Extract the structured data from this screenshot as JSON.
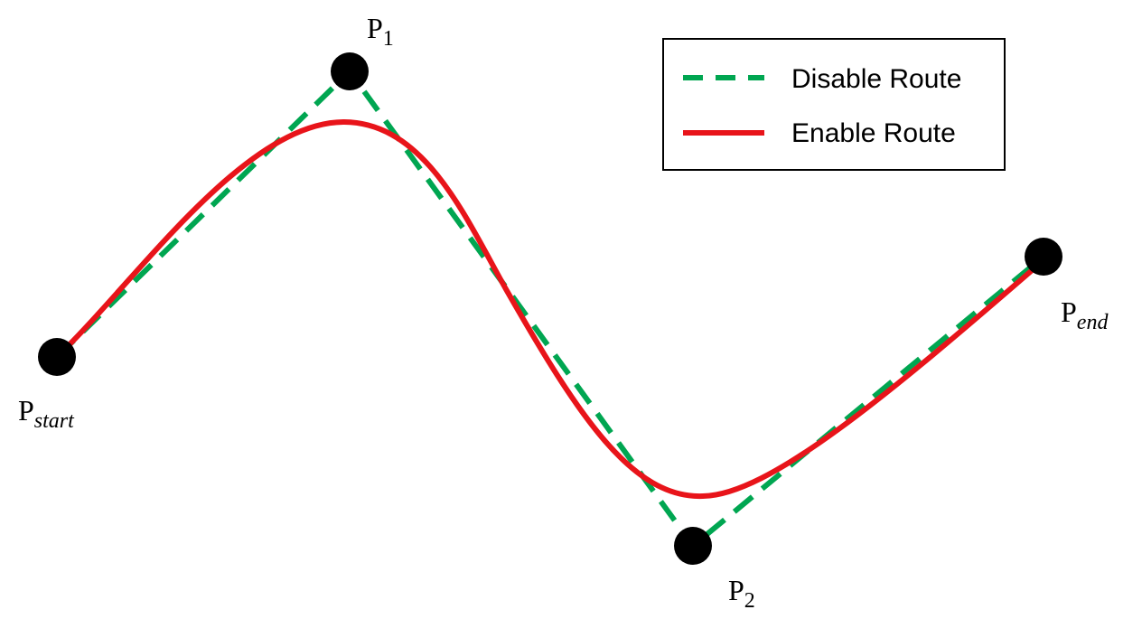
{
  "colors": {
    "disable_route": "#00a651",
    "enable_route": "#e8141a",
    "point": "#000000",
    "legend_border": "#000000",
    "background": "#ffffff"
  },
  "points": {
    "start": {
      "base": "P",
      "sub": "start"
    },
    "p1": {
      "base": "P",
      "sub": "1"
    },
    "p2": {
      "base": "P",
      "sub": "2"
    },
    "end": {
      "base": "P",
      "sub": "end"
    }
  },
  "legend": {
    "disable_label": "Disable Route",
    "enable_label": "Enable Route"
  }
}
